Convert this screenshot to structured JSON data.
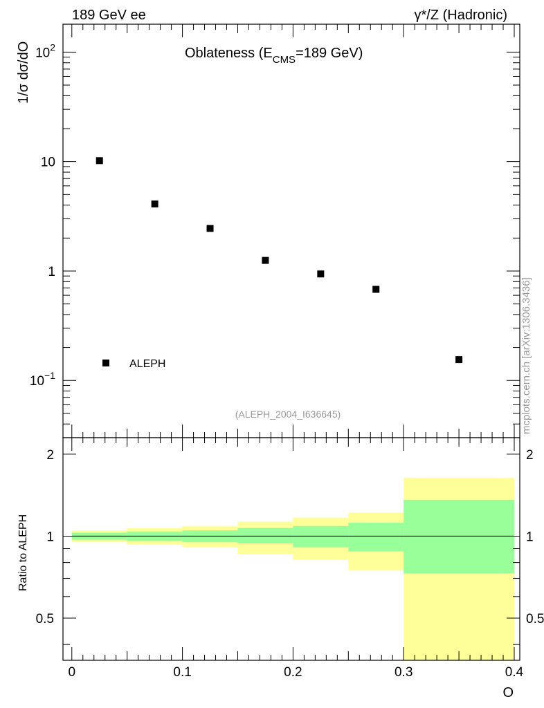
{
  "header": {
    "left": "189 GeV ee",
    "right": "γ*/Z (Hadronic)"
  },
  "watermark": "mcplots.cern.ch [arXiv:1306.3436]",
  "colors": {
    "data": "#000000",
    "band_inner": "#99ff99",
    "band_outer": "#ffff99",
    "frame": "#000000",
    "label_gray": "#999999"
  },
  "chart_data": [
    {
      "type": "scatter",
      "panel": "main",
      "title_main": "Oblateness (E",
      "title_sub": "CMS",
      "title_rest": "=189 GeV)",
      "ylabel": "1/σ  dσ/dO",
      "yscale": "log",
      "ylim": [
        0.03,
        180
      ],
      "y_ticks": [
        {
          "value": 0.1,
          "base": "10",
          "exp": "−1"
        },
        {
          "value": 1,
          "base": "1",
          "exp": ""
        },
        {
          "value": 10,
          "base": "10",
          "exp": ""
        },
        {
          "value": 100,
          "base": "10",
          "exp": "2"
        }
      ],
      "xlim": [
        -0.008,
        0.405
      ],
      "legend": {
        "label": "ALEPH",
        "placement": "bottom-left"
      },
      "analysis_id": "(ALEPH_2004_I636645)",
      "series": [
        {
          "name": "ALEPH",
          "x": [
            0.025,
            0.075,
            0.125,
            0.175,
            0.225,
            0.275,
            0.35
          ],
          "y": [
            10.2,
            4.1,
            2.45,
            1.25,
            0.94,
            0.68,
            0.155
          ]
        }
      ]
    },
    {
      "type": "area",
      "panel": "ratio",
      "ylabel": "Ratio to ALEPH",
      "ylim": [
        0.35,
        2.3
      ],
      "y_ticks": [
        0.5,
        1,
        2
      ],
      "xlabel": "O",
      "xlim": [
        -0.008,
        0.405
      ],
      "x_ticks": [
        0,
        0.1,
        0.2,
        0.3,
        0.4
      ],
      "x_tick_labels": [
        "0",
        "0.1",
        "0.2",
        "0.3",
        "0.4"
      ],
      "reference_line": 1,
      "bins": [
        {
          "x0": 0.0,
          "x1": 0.05,
          "inner": [
            0.97,
            1.03
          ],
          "outer": [
            0.95,
            1.05
          ]
        },
        {
          "x0": 0.05,
          "x1": 0.1,
          "inner": [
            0.96,
            1.04
          ],
          "outer": [
            0.93,
            1.07
          ]
        },
        {
          "x0": 0.1,
          "x1": 0.15,
          "inner": [
            0.95,
            1.05
          ],
          "outer": [
            0.91,
            1.09
          ]
        },
        {
          "x0": 0.15,
          "x1": 0.2,
          "inner": [
            0.94,
            1.07
          ],
          "outer": [
            0.86,
            1.13
          ]
        },
        {
          "x0": 0.2,
          "x1": 0.25,
          "inner": [
            0.91,
            1.09
          ],
          "outer": [
            0.82,
            1.17
          ]
        },
        {
          "x0": 0.25,
          "x1": 0.3,
          "inner": [
            0.88,
            1.12
          ],
          "outer": [
            0.75,
            1.22
          ]
        },
        {
          "x0": 0.3,
          "x1": 0.4,
          "inner": [
            0.73,
            1.36
          ],
          "outer": [
            0.35,
            1.64
          ]
        }
      ]
    }
  ]
}
